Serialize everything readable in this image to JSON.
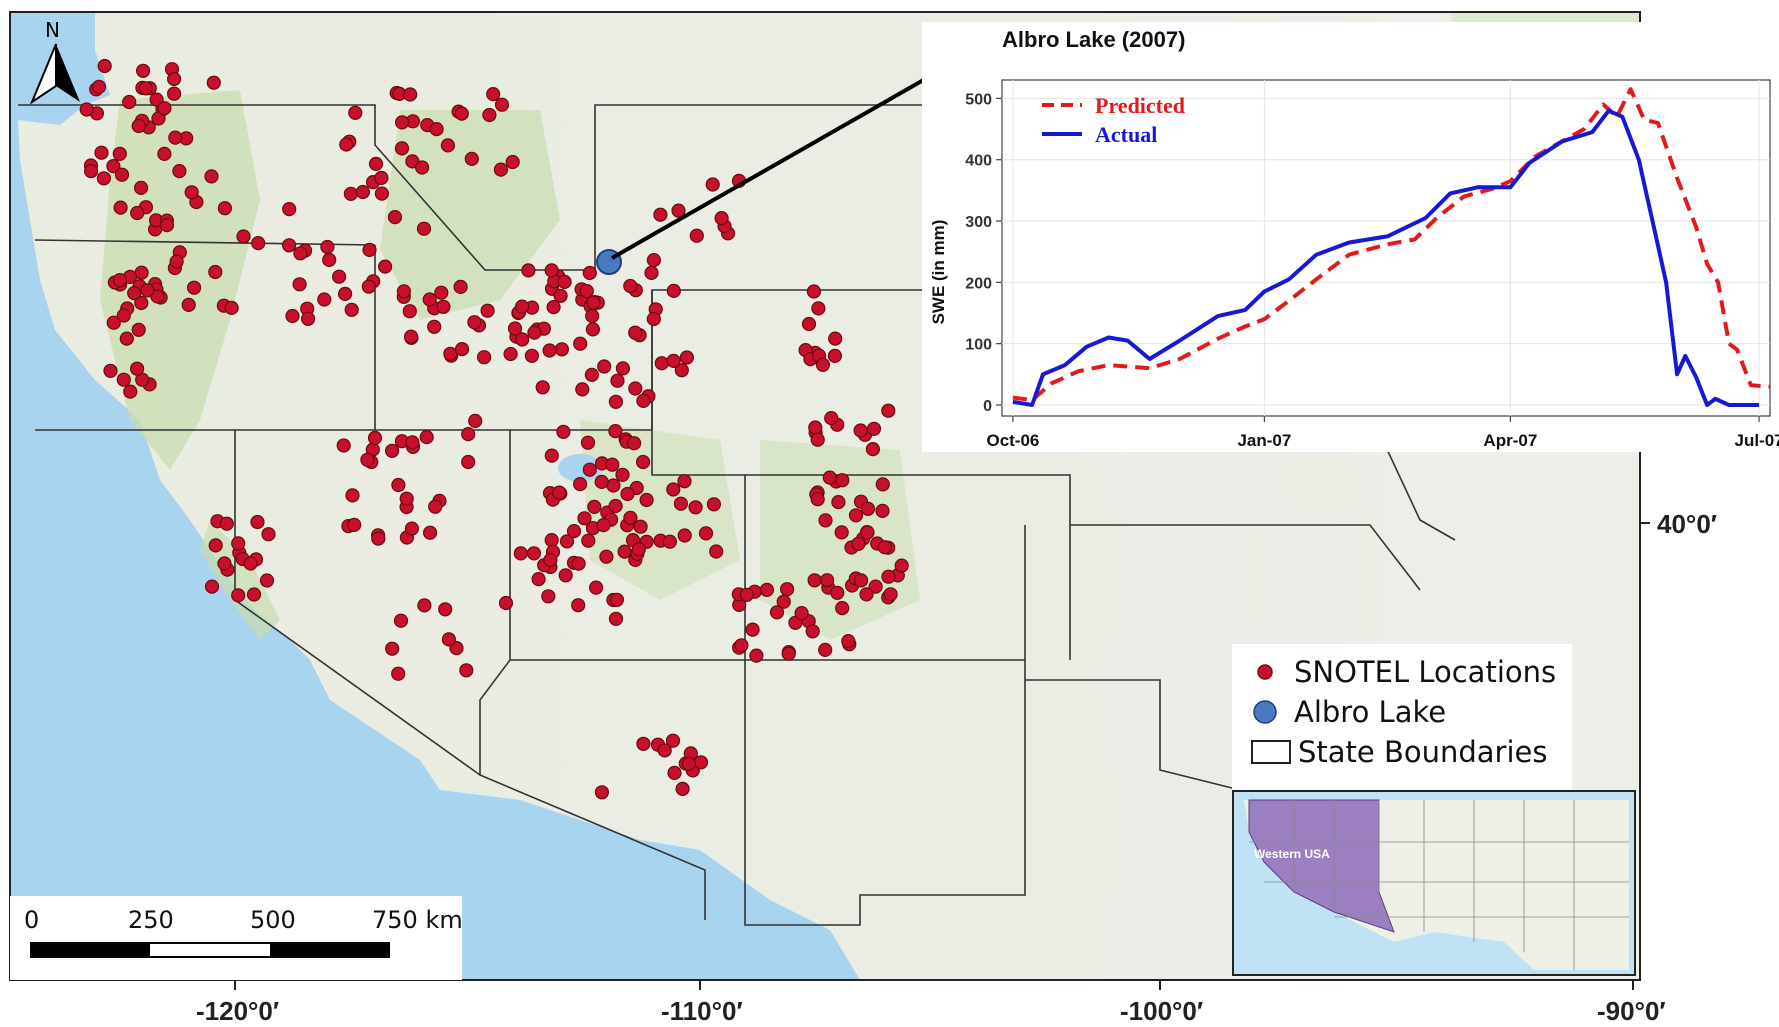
{
  "map": {
    "x_ticks": [
      "-120°0′",
      "-110°0′",
      "-100°0′",
      "-90°0′"
    ],
    "y_ticks": [
      "40°0′"
    ],
    "north_label": "N",
    "colors": {
      "snotel": "#c8102e",
      "albro": "#4a78c2",
      "land": "#eef0e6",
      "forest": "#c8ddb0",
      "water": "#a9d4ef"
    }
  },
  "legend": {
    "items": [
      {
        "label": "SNOTEL Locations",
        "symbol": "red-dot"
      },
      {
        "label": "Albro Lake",
        "symbol": "blue-dot"
      },
      {
        "label": "State Boundaries",
        "symbol": "rectangle"
      }
    ]
  },
  "scale_bar": {
    "labels": [
      "0",
      "250",
      "500",
      "750 km"
    ]
  },
  "inset": {
    "label": "Western USA",
    "highlight_color": "#9b7fc0"
  },
  "chart_data": {
    "type": "line",
    "title": "Albro Lake (2007)",
    "xlabel": "",
    "ylabel": "SWE (in mm)",
    "ylim": [
      0,
      520
    ],
    "yticks": [
      0,
      100,
      200,
      300,
      400,
      500
    ],
    "xlim": [
      "2006-10-01",
      "2007-07-01"
    ],
    "xtick_labels": [
      "Oct-06",
      "Jan-07",
      "Apr-07",
      "Jul-07"
    ],
    "xtick_dates": [
      "2006-10-01",
      "2007-01-01",
      "2007-04-01",
      "2007-07-01"
    ],
    "grid": true,
    "legend_position": "top-left",
    "series": [
      {
        "name": "Predicted",
        "color": "#e31a1c",
        "style": "dashed",
        "points": [
          [
            "2006-10-01",
            12
          ],
          [
            "2006-10-08",
            8
          ],
          [
            "2006-10-15",
            35
          ],
          [
            "2006-10-25",
            55
          ],
          [
            "2006-11-05",
            65
          ],
          [
            "2006-11-20",
            60
          ],
          [
            "2006-12-01",
            75
          ],
          [
            "2006-12-15",
            108
          ],
          [
            "2006-12-25",
            128
          ],
          [
            "2007-01-01",
            140
          ],
          [
            "2007-01-10",
            170
          ],
          [
            "2007-01-20",
            205
          ],
          [
            "2007-02-01",
            245
          ],
          [
            "2007-02-15",
            262
          ],
          [
            "2007-02-25",
            270
          ],
          [
            "2007-03-05",
            305
          ],
          [
            "2007-03-15",
            340
          ],
          [
            "2007-03-25",
            352
          ],
          [
            "2007-04-01",
            365
          ],
          [
            "2007-04-10",
            405
          ],
          [
            "2007-04-20",
            430
          ],
          [
            "2007-04-28",
            450
          ],
          [
            "2007-05-05",
            490
          ],
          [
            "2007-05-10",
            470
          ],
          [
            "2007-05-15",
            515
          ],
          [
            "2007-05-20",
            465
          ],
          [
            "2007-05-25",
            460
          ],
          [
            "2007-06-01",
            370
          ],
          [
            "2007-06-08",
            290
          ],
          [
            "2007-06-12",
            230
          ],
          [
            "2007-06-16",
            200
          ],
          [
            "2007-06-20",
            100
          ],
          [
            "2007-06-23",
            90
          ],
          [
            "2007-06-26",
            55
          ],
          [
            "2007-06-28",
            32
          ],
          [
            "2007-07-05",
            30
          ]
        ]
      },
      {
        "name": "Actual",
        "color": "#1818d4",
        "style": "solid",
        "points": [
          [
            "2006-10-01",
            5
          ],
          [
            "2006-10-08",
            0
          ],
          [
            "2006-10-12",
            50
          ],
          [
            "2006-10-20",
            65
          ],
          [
            "2006-10-28",
            95
          ],
          [
            "2006-11-05",
            110
          ],
          [
            "2006-11-12",
            105
          ],
          [
            "2006-11-20",
            75
          ],
          [
            "2006-12-01",
            105
          ],
          [
            "2006-12-15",
            145
          ],
          [
            "2006-12-25",
            155
          ],
          [
            "2007-01-01",
            185
          ],
          [
            "2007-01-10",
            205
          ],
          [
            "2007-01-20",
            245
          ],
          [
            "2007-02-01",
            265
          ],
          [
            "2007-02-15",
            275
          ],
          [
            "2007-03-01",
            305
          ],
          [
            "2007-03-10",
            345
          ],
          [
            "2007-03-20",
            355
          ],
          [
            "2007-04-01",
            355
          ],
          [
            "2007-04-08",
            395
          ],
          [
            "2007-04-20",
            430
          ],
          [
            "2007-05-01",
            445
          ],
          [
            "2007-05-07",
            480
          ],
          [
            "2007-05-12",
            470
          ],
          [
            "2007-05-18",
            400
          ],
          [
            "2007-05-23",
            300
          ],
          [
            "2007-05-28",
            200
          ],
          [
            "2007-06-01",
            50
          ],
          [
            "2007-06-04",
            80
          ],
          [
            "2007-06-08",
            45
          ],
          [
            "2007-06-12",
            0
          ],
          [
            "2007-06-15",
            10
          ],
          [
            "2007-06-20",
            0
          ],
          [
            "2007-07-01",
            0
          ]
        ]
      }
    ]
  }
}
